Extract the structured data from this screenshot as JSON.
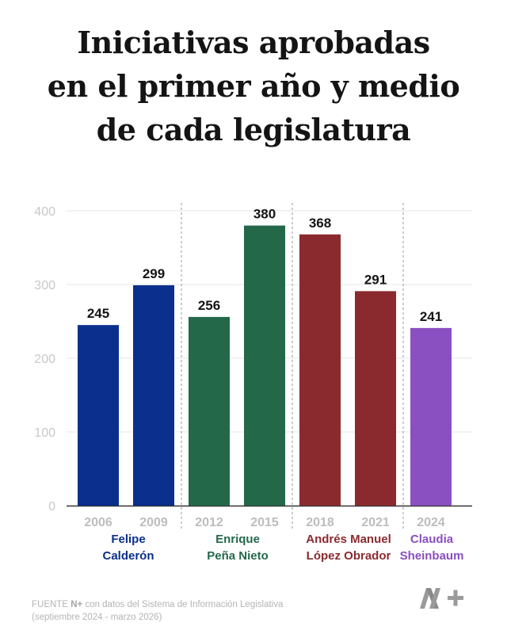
{
  "title_lines": [
    "Iniciativas aprobadas",
    "en el primer año y medio",
    "de cada legislatura"
  ],
  "chart_data": {
    "type": "bar",
    "title": "Iniciativas aprobadas en el primer año y medio de cada legislatura",
    "categories": [
      "2006",
      "2009",
      "2012",
      "2015",
      "2018",
      "2021",
      "2024"
    ],
    "values": [
      245,
      299,
      256,
      380,
      368,
      291,
      241
    ],
    "ylim": [
      0,
      400
    ],
    "yticks": [
      0,
      100,
      200,
      300,
      400
    ],
    "ytick_labels": [
      "0",
      "100",
      "200",
      "300",
      "400"
    ],
    "grid": true,
    "groups": [
      {
        "name_lines": [
          "Felipe",
          "Calderón"
        ],
        "categories": [
          "2006",
          "2009"
        ],
        "color": "#0a2f8c"
      },
      {
        "name_lines": [
          "Enrique",
          "Peña Nieto"
        ],
        "categories": [
          "2012",
          "2015"
        ],
        "color": "#24684a"
      },
      {
        "name_lines": [
          "Andrés Manuel",
          "López Obrador"
        ],
        "categories": [
          "2018",
          "2021"
        ],
        "color": "#8b2a2e"
      },
      {
        "name_lines": [
          "Claudia",
          "Sheinbaum"
        ],
        "categories": [
          "2024"
        ],
        "color": "#8a4fc0"
      }
    ]
  },
  "source": {
    "label": "FUENTE",
    "brand": "N+",
    "line1_rest": " con datos del Sistema de Información Legislativa",
    "line2": "(septiembre 2024 - marzo 2026)"
  },
  "logo": {
    "text": "N+",
    "icon": "n-plus-logo-icon"
  }
}
